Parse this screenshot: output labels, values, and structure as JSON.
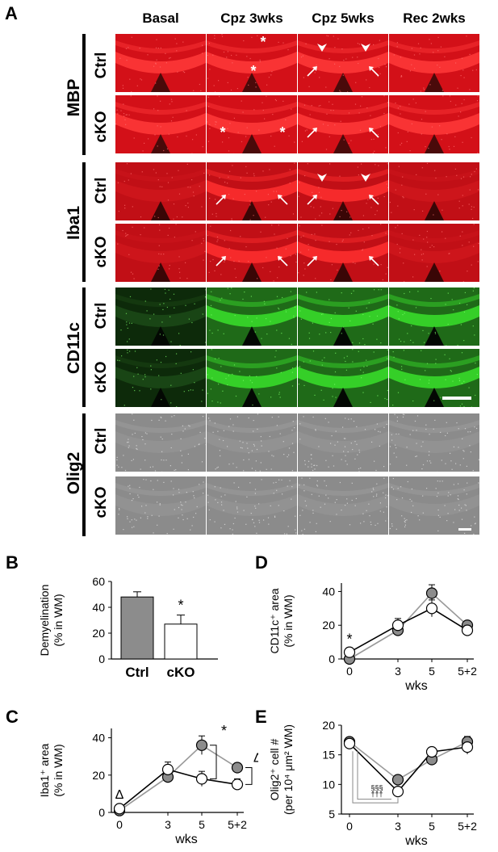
{
  "figure": {
    "panel_letters": [
      "A",
      "B",
      "C",
      "D",
      "E"
    ],
    "columns": [
      "Basal",
      "Cpz 3wks",
      "Cpz 5wks",
      "Rec 2wks"
    ],
    "rows": [
      {
        "stain": "MBP",
        "groups": [
          "Ctrl",
          "cKO"
        ],
        "color": "#e8141b"
      },
      {
        "stain": "Iba1",
        "groups": [
          "Ctrl",
          "cKO"
        ],
        "color": "#d9121a"
      },
      {
        "stain": "CD11c",
        "groups": [
          "Ctrl",
          "cKO"
        ],
        "color": "#2ccf1f"
      },
      {
        "stain": "Olig2",
        "groups": [
          "Ctrl",
          "cKO"
        ],
        "color": "#9a9a9a"
      }
    ],
    "markers": {
      "asterisk": "*",
      "arrow": "arrow-icon",
      "arrowhead": "arrowhead-icon"
    }
  },
  "chart_data": [
    {
      "panel": "B",
      "type": "bar",
      "ylabel_lines": [
        "Demyelination",
        "(% in WM)"
      ],
      "categories": [
        "Ctrl",
        "cKO"
      ],
      "values": [
        48,
        27
      ],
      "errors": [
        4,
        7
      ],
      "fills": [
        "#8c8c8c",
        "#ffffff"
      ],
      "ylim": [
        0,
        60
      ],
      "yticks": [
        "0",
        "20",
        "40",
        "60"
      ],
      "annotations": [
        {
          "text": "*",
          "category": "cKO"
        }
      ]
    },
    {
      "panel": "C",
      "type": "line",
      "ylabel_lines": [
        "Iba1⁺ area",
        "(% in WM)"
      ],
      "xlabel": "wks",
      "x": [
        "0",
        "3",
        "5",
        "5+2"
      ],
      "ylim": [
        0,
        45
      ],
      "yticks": [
        "0",
        "20",
        "40"
      ],
      "series": [
        {
          "marker": "filled",
          "values": [
            1,
            19,
            36,
            24
          ],
          "errors": [
            1,
            3,
            5,
            1
          ]
        },
        {
          "marker": "open",
          "values": [
            2,
            23,
            18,
            15
          ],
          "errors": [
            1,
            4,
            4,
            3
          ]
        }
      ],
      "annotations": [
        "Δ",
        "*",
        "Δ"
      ]
    },
    {
      "panel": "D",
      "type": "line",
      "ylabel_lines": [
        "CD11c⁺ area",
        "(% in WM)"
      ],
      "xlabel": "wks",
      "x": [
        "0",
        "3",
        "5",
        "5+2"
      ],
      "ylim": [
        0,
        45
      ],
      "yticks": [
        "0",
        "20",
        "40"
      ],
      "series": [
        {
          "marker": "filled",
          "values": [
            0,
            17,
            39,
            20
          ],
          "errors": [
            0,
            3,
            5,
            2
          ]
        },
        {
          "marker": "open",
          "values": [
            4,
            20,
            30,
            17
          ],
          "errors": [
            1,
            4,
            5,
            3
          ]
        }
      ],
      "annotations": [
        "*"
      ]
    },
    {
      "panel": "E",
      "type": "line",
      "ylabel_lines": [
        "Olig2⁺ cell #",
        "(per 10⁴ μm² WM)"
      ],
      "xlabel": "wks",
      "x": [
        "0",
        "3",
        "5",
        "5+2"
      ],
      "ylim": [
        5,
        20
      ],
      "yticks": [
        "5",
        "10",
        "15",
        "20"
      ],
      "series": [
        {
          "marker": "filled",
          "values": [
            17.2,
            10.8,
            14.2,
            17.2
          ],
          "errors": [
            0.6,
            0.6,
            0.7,
            0.9
          ]
        },
        {
          "marker": "open",
          "values": [
            16.9,
            8.8,
            15.5,
            16.3
          ],
          "errors": [
            0.6,
            0.6,
            0.6,
            1.2
          ]
        }
      ],
      "annotations": [
        "§§§",
        "†††"
      ]
    }
  ]
}
